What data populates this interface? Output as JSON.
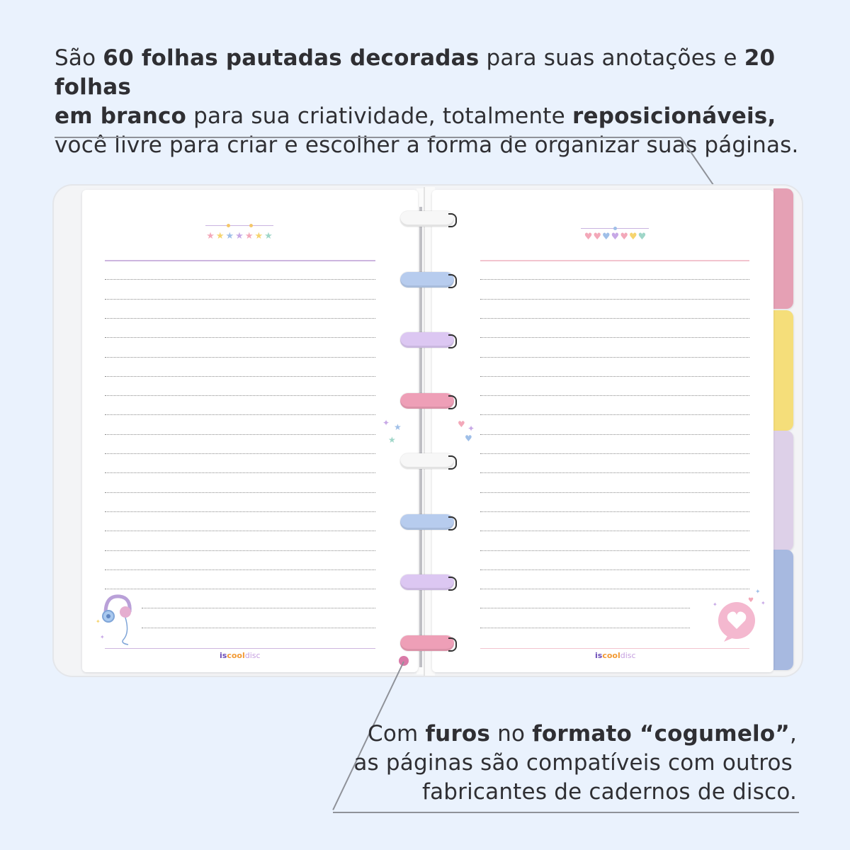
{
  "caption_top": {
    "line1": [
      {
        "text": "São ",
        "bold": false
      },
      {
        "text": "60 folhas pautadas decoradas",
        "bold": true
      },
      {
        "text": " para suas anotações e ",
        "bold": false
      },
      {
        "text": "20 folhas",
        "bold": true
      }
    ],
    "line2": [
      {
        "text": "em branco",
        "bold": true
      },
      {
        "text": " para sua criatividade, totalmente ",
        "bold": false
      },
      {
        "text": "reposicionáveis,",
        "bold": true
      }
    ],
    "line3": [
      {
        "text": "você livre para criar e escolher a forma de organizar suas páginas.",
        "bold": false
      }
    ]
  },
  "caption_bottom": {
    "line1": [
      {
        "text": "Com ",
        "bold": false
      },
      {
        "text": "furos",
        "bold": true
      },
      {
        "text": " no ",
        "bold": false
      },
      {
        "text": "formato “cogumelo”",
        "bold": true
      },
      {
        "text": ",",
        "bold": false
      }
    ],
    "line2": [
      {
        "text": "as páginas são compatíveis com outros",
        "bold": false
      }
    ],
    "line3": [
      {
        "text": "fabricantes de cadernos de disco.",
        "bold": false
      }
    ]
  },
  "logo": {
    "part1": "is",
    "part2": "cool",
    "part3": "disc"
  },
  "colors": {
    "background": "#eaf2fd",
    "accent_dot": "#d97aa8",
    "tab_pink": "#e5a0b4",
    "tab_yellow": "#f5de7a",
    "tab_lavender": "#ddd0e8",
    "tab_blue": "#a7b9e0",
    "ring_white": "#f7f7f7",
    "ring_blue": "#b7ccee",
    "ring_lilac": "#dcc7f2",
    "ring_pink": "#ee9fb7"
  },
  "notebook": {
    "left_page_header_icon": "stars-row",
    "right_page_header_icon": "hearts-row",
    "left_page_corner_icon": "headphones-icon",
    "right_page_corner_icon": "heart-speech-bubble-icon",
    "rings": [
      "white",
      "blue",
      "lilac",
      "pink",
      "white",
      "blue",
      "lilac",
      "pink"
    ],
    "tabs": [
      "pink",
      "yellow",
      "lavender",
      "blue"
    ]
  }
}
